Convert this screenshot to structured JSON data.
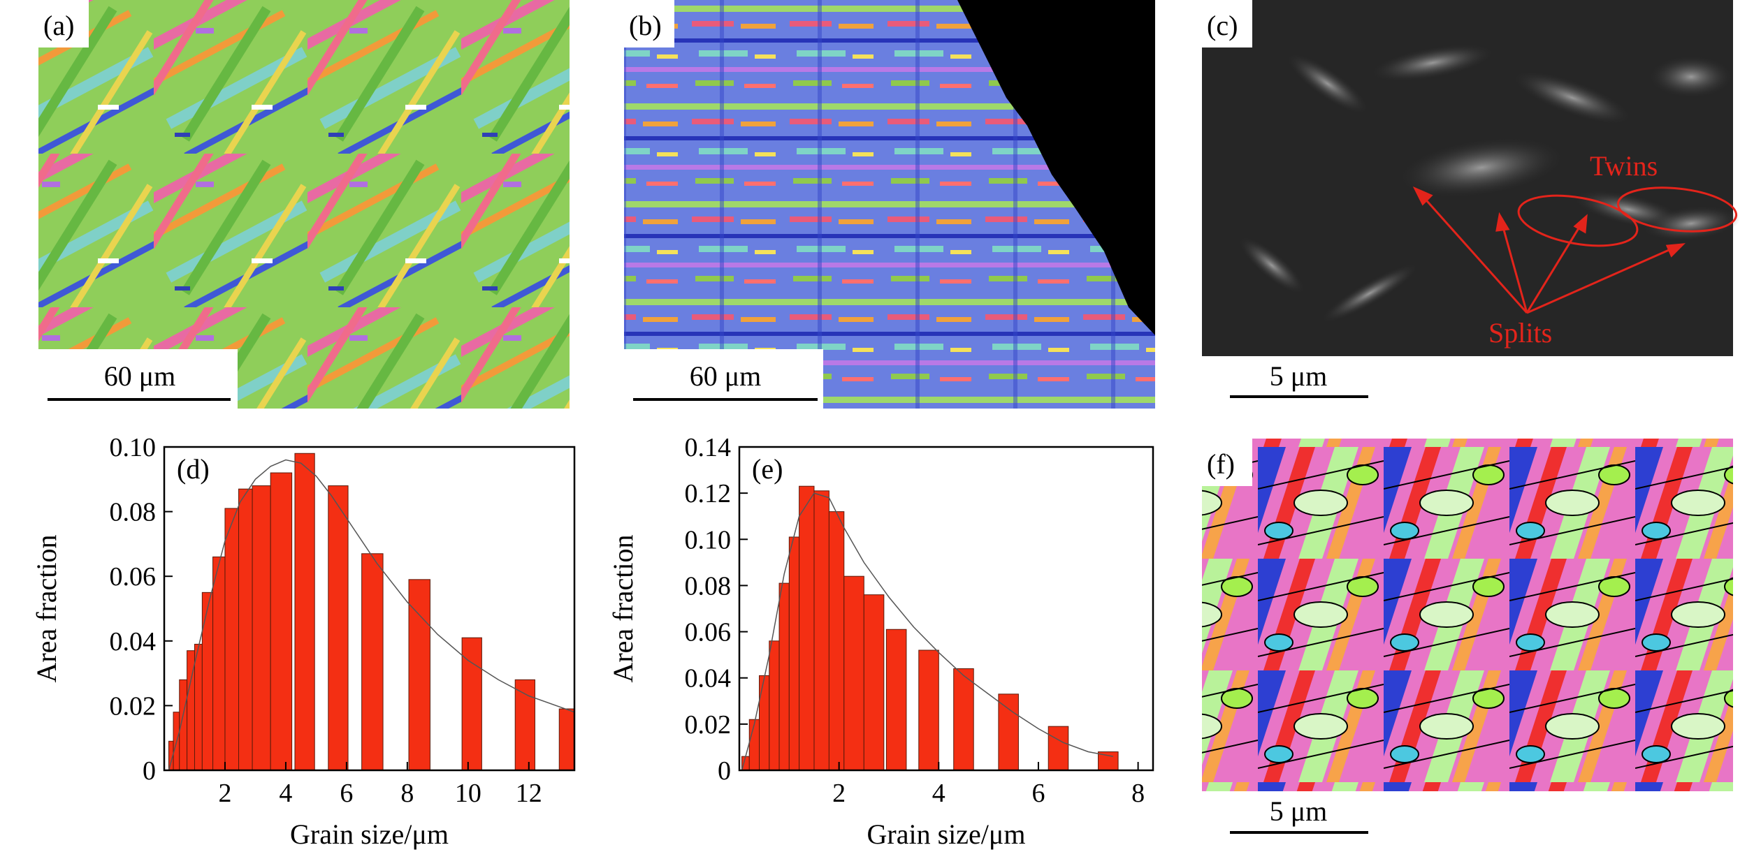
{
  "panels": {
    "a": {
      "label": "(a)",
      "scale_bar": "60 μm"
    },
    "b": {
      "label": "(b)",
      "scale_bar": "60 μm"
    },
    "c": {
      "label": "(c)",
      "scale_bar": "5 μm",
      "annotation_twins": "Twins",
      "annotation_splits": "Splits"
    },
    "f": {
      "label": "(f)",
      "scale_bar": "5 μm"
    }
  },
  "chart_data": [
    {
      "panel": "(d)",
      "type": "bar",
      "xlabel": "Grain size/μm",
      "ylabel": "Area fraction",
      "xlim": [
        0,
        13.5
      ],
      "ylim": [
        0,
        0.1
      ],
      "xticks": [
        "2",
        "4",
        "6",
        "8",
        "10",
        "12"
      ],
      "yticks": [
        "0",
        "0.02",
        "0.04",
        "0.06",
        "0.08",
        "0.10"
      ],
      "bars": [
        {
          "left": 0.15,
          "right": 0.3,
          "value": 0.009
        },
        {
          "left": 0.3,
          "right": 0.5,
          "value": 0.018
        },
        {
          "left": 0.5,
          "right": 0.75,
          "value": 0.028
        },
        {
          "left": 0.75,
          "right": 1.0,
          "value": 0.037
        },
        {
          "left": 1.0,
          "right": 1.25,
          "value": 0.039
        },
        {
          "left": 1.25,
          "right": 1.6,
          "value": 0.055
        },
        {
          "left": 1.6,
          "right": 2.0,
          "value": 0.066
        },
        {
          "left": 2.0,
          "right": 2.45,
          "value": 0.081
        },
        {
          "left": 2.45,
          "right": 2.9,
          "value": 0.087
        },
        {
          "left": 2.9,
          "right": 3.5,
          "value": 0.088
        },
        {
          "left": 3.5,
          "right": 4.2,
          "value": 0.092
        },
        {
          "left": 4.3,
          "right": 4.95,
          "value": 0.098
        },
        {
          "left": 5.4,
          "right": 6.05,
          "value": 0.088
        },
        {
          "left": 6.5,
          "right": 7.2,
          "value": 0.067
        },
        {
          "left": 8.05,
          "right": 8.75,
          "value": 0.059
        },
        {
          "left": 9.8,
          "right": 10.45,
          "value": 0.041
        },
        {
          "left": 11.55,
          "right": 12.2,
          "value": 0.028
        },
        {
          "left": 13.0,
          "right": 13.5,
          "value": 0.019
        }
      ],
      "fit_curve": [
        [
          0.15,
          0.0
        ],
        [
          0.5,
          0.012
        ],
        [
          1.0,
          0.033
        ],
        [
          1.5,
          0.053
        ],
        [
          2.0,
          0.071
        ],
        [
          2.5,
          0.083
        ],
        [
          3.0,
          0.09
        ],
        [
          3.5,
          0.094
        ],
        [
          4.0,
          0.096
        ],
        [
          4.5,
          0.095
        ],
        [
          5.0,
          0.091
        ],
        [
          5.5,
          0.085
        ],
        [
          6.0,
          0.078
        ],
        [
          7.0,
          0.064
        ],
        [
          8.0,
          0.052
        ],
        [
          9.0,
          0.042
        ],
        [
          10.0,
          0.034
        ],
        [
          11.0,
          0.028
        ],
        [
          12.0,
          0.023
        ],
        [
          13.5,
          0.018
        ]
      ]
    },
    {
      "panel": "(e)",
      "type": "bar",
      "xlabel": "Grain size/μm",
      "ylabel": "Area fraction",
      "xlim": [
        0,
        8.3
      ],
      "ylim": [
        0,
        0.14
      ],
      "xticks": [
        "2",
        "4",
        "6",
        "8"
      ],
      "yticks": [
        "0",
        "0.02",
        "0.04",
        "0.06",
        "0.08",
        "0.10",
        "0.12",
        "0.14"
      ],
      "bars": [
        {
          "left": 0.05,
          "right": 0.2,
          "value": 0.006
        },
        {
          "left": 0.2,
          "right": 0.4,
          "value": 0.022
        },
        {
          "left": 0.4,
          "right": 0.6,
          "value": 0.041
        },
        {
          "left": 0.6,
          "right": 0.8,
          "value": 0.056
        },
        {
          "left": 0.8,
          "right": 1.0,
          "value": 0.081
        },
        {
          "left": 1.0,
          "right": 1.2,
          "value": 0.101
        },
        {
          "left": 1.2,
          "right": 1.5,
          "value": 0.123
        },
        {
          "left": 1.5,
          "right": 1.8,
          "value": 0.121
        },
        {
          "left": 1.8,
          "right": 2.1,
          "value": 0.112
        },
        {
          "left": 2.1,
          "right": 2.5,
          "value": 0.084
        },
        {
          "left": 2.5,
          "right": 2.9,
          "value": 0.076
        },
        {
          "left": 2.95,
          "right": 3.35,
          "value": 0.061
        },
        {
          "left": 3.6,
          "right": 4.0,
          "value": 0.052
        },
        {
          "left": 4.3,
          "right": 4.7,
          "value": 0.044
        },
        {
          "left": 5.2,
          "right": 5.6,
          "value": 0.033
        },
        {
          "left": 6.2,
          "right": 6.6,
          "value": 0.019
        },
        {
          "left": 7.2,
          "right": 7.6,
          "value": 0.008
        }
      ],
      "fit_curve": [
        [
          0.05,
          0.0
        ],
        [
          0.3,
          0.02
        ],
        [
          0.6,
          0.05
        ],
        [
          0.9,
          0.085
        ],
        [
          1.2,
          0.11
        ],
        [
          1.5,
          0.12
        ],
        [
          1.8,
          0.118
        ],
        [
          2.1,
          0.105
        ],
        [
          2.5,
          0.09
        ],
        [
          3.0,
          0.075
        ],
        [
          3.5,
          0.062
        ],
        [
          4.0,
          0.051
        ],
        [
          4.5,
          0.041
        ],
        [
          5.0,
          0.033
        ],
        [
          5.5,
          0.025
        ],
        [
          6.0,
          0.018
        ],
        [
          6.5,
          0.012
        ],
        [
          7.0,
          0.008
        ],
        [
          7.5,
          0.006
        ]
      ]
    }
  ]
}
